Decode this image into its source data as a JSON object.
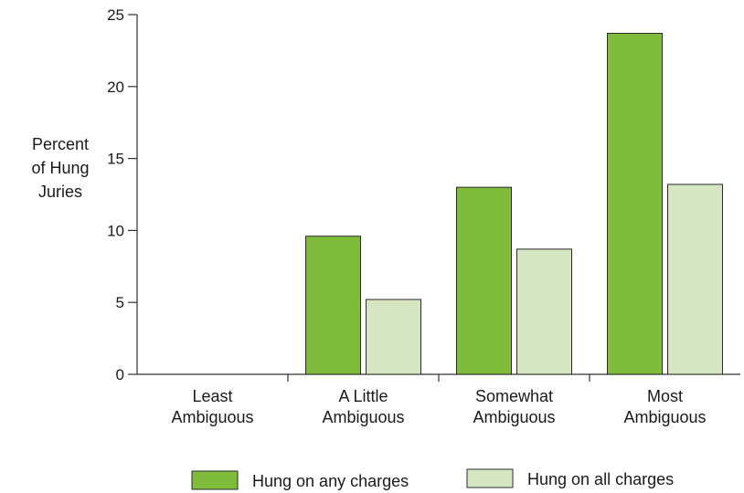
{
  "chart_data": {
    "type": "bar",
    "title": "",
    "ylabel_lines": [
      "Percent",
      "of Hung",
      "Juries"
    ],
    "xlabel": "",
    "categories": [
      [
        "Least",
        "Ambiguous"
      ],
      [
        "A Little",
        "Ambiguous"
      ],
      [
        "Somewhat",
        "Ambiguous"
      ],
      [
        "Most",
        "Ambiguous"
      ]
    ],
    "series": [
      {
        "name": "Hung on any charges",
        "color": "#7fbc3c",
        "values": [
          0,
          9.6,
          13.0,
          23.7
        ]
      },
      {
        "name": "Hung on all charges",
        "color": "#d6e6c2",
        "values": [
          0,
          5.2,
          8.7,
          13.2
        ]
      }
    ],
    "ylim": [
      0,
      25
    ],
    "yticks": [
      0,
      5,
      10,
      15,
      20,
      25
    ],
    "grid": false,
    "legend_position": "bottom"
  }
}
